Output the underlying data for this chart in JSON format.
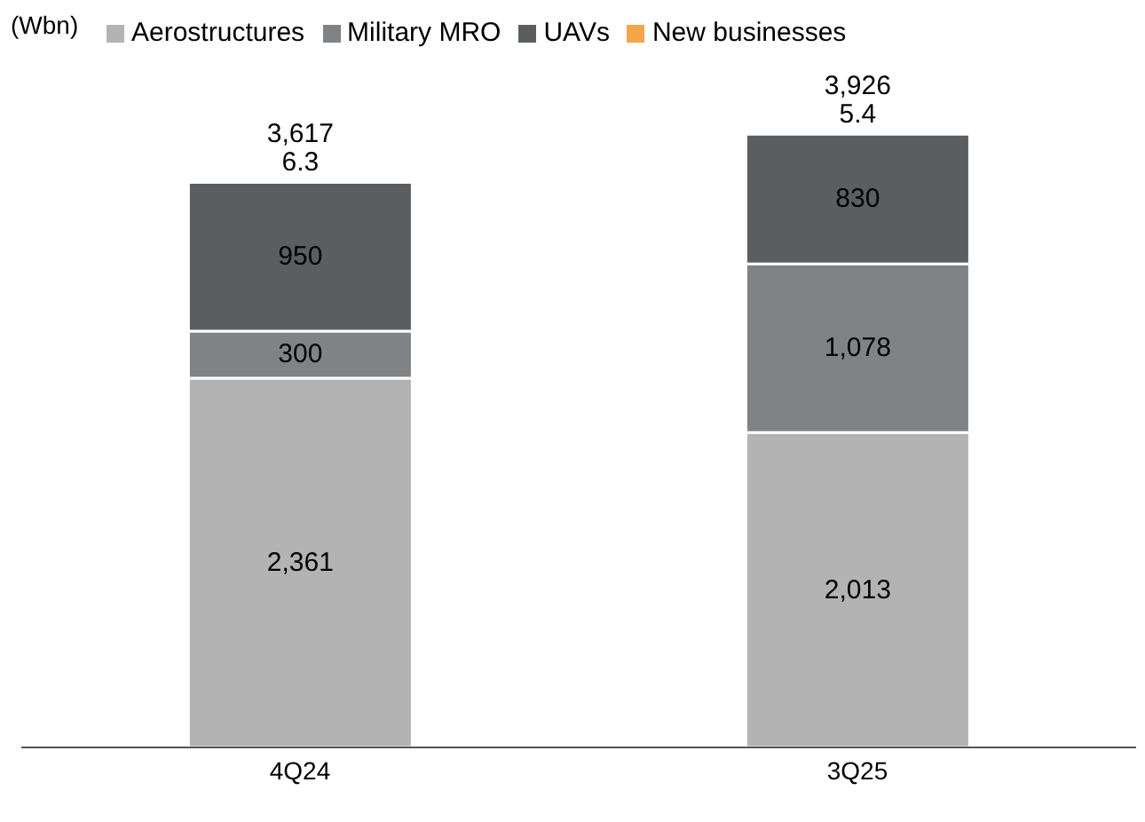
{
  "chart_data": {
    "type": "bar",
    "stacked": true,
    "ylabel": "(Wbn)",
    "categories": [
      "4Q24",
      "3Q25"
    ],
    "series": [
      {
        "name": "Aerostructures",
        "color": "#b3b3b3",
        "values": [
          2361,
          2013
        ],
        "value_labels": [
          "2,361",
          "2,013"
        ]
      },
      {
        "name": "Military MRO",
        "color": "#808386",
        "values": [
          300,
          1078
        ],
        "value_labels": [
          "300",
          "1,078"
        ]
      },
      {
        "name": "UAVs",
        "color": "#5b5e61",
        "values": [
          950,
          830
        ],
        "value_labels": [
          "950",
          "830"
        ]
      },
      {
        "name": "New businesses",
        "color": "#f5a54a",
        "values": [
          6.3,
          5.4
        ],
        "value_labels": [
          "6.3",
          "5.4"
        ]
      }
    ],
    "totals": [
      "3,617",
      "3,926"
    ],
    "legend": "top"
  }
}
